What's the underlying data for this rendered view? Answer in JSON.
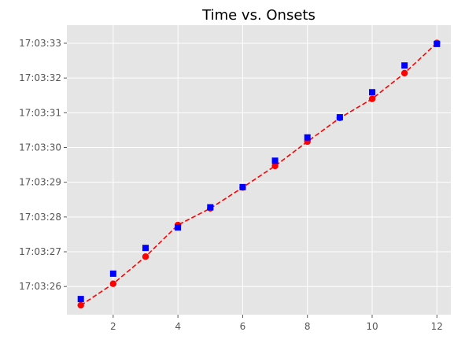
{
  "chart_data": {
    "type": "line",
    "title": "Time vs. Onsets",
    "xlabel": "",
    "ylabel": "",
    "xlim": [
      0.57,
      12.43
    ],
    "ylim": [
      25.19,
      33.52
    ],
    "x_ticks": [
      2,
      4,
      6,
      8,
      10,
      12
    ],
    "y_ticks": [
      {
        "value": 26,
        "label": "17:03:26"
      },
      {
        "value": 27,
        "label": "17:03:27"
      },
      {
        "value": 28,
        "label": "17:03:28"
      },
      {
        "value": 29,
        "label": "17:03:29"
      },
      {
        "value": 30,
        "label": "17:03:30"
      },
      {
        "value": 31,
        "label": "17:03:31"
      },
      {
        "value": 32,
        "label": "17:03:32"
      },
      {
        "value": 33,
        "label": "17:03:33"
      }
    ],
    "grid": true,
    "background_color": "#e5e5e5",
    "series": [
      {
        "color": "#ff0000",
        "marker": "circle",
        "line_style": "dashed",
        "x": [
          1,
          2,
          3,
          4,
          5,
          6,
          7,
          8,
          9,
          10,
          11,
          12
        ],
        "y": [
          25.46,
          26.08,
          26.86,
          27.77,
          28.25,
          28.85,
          29.47,
          30.17,
          30.85,
          31.4,
          32.14,
          33.01
        ]
      },
      {
        "color": "#0000ff",
        "marker": "square",
        "line_style": "none",
        "x": [
          1,
          2,
          3,
          4,
          5,
          6,
          7,
          8,
          9,
          10,
          11,
          12
        ],
        "y": [
          25.64,
          26.37,
          27.11,
          27.7,
          28.28,
          28.86,
          29.62,
          30.29,
          30.87,
          31.59,
          32.36,
          32.98
        ]
      }
    ]
  }
}
